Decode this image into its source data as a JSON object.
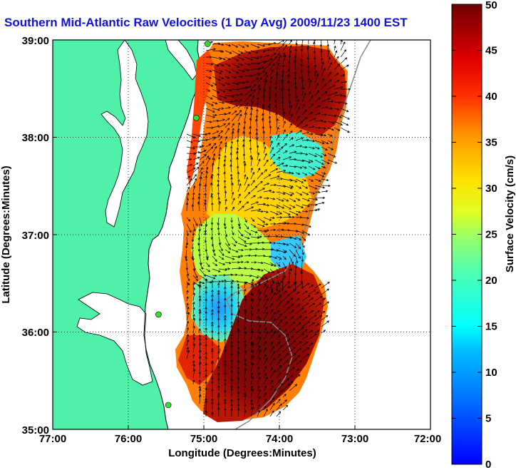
{
  "title": "Southern Mid-Atlantic Raw Velocities (1 Day Avg) 2009/11/23 1400 EST",
  "map": {
    "xlabel": "Longitude (Degrees:Minutes)",
    "ylabel": "Latitude (Degrees:Minutes)",
    "x_ticks": [
      "77:00",
      "76:00",
      "75:00",
      "74:00",
      "73:00",
      "72:00"
    ],
    "y_ticks": [
      "39:00",
      "38:00",
      "37:00",
      "36:00",
      "35:00"
    ],
    "lon_range": [
      -77,
      -72
    ],
    "lat_range": [
      35,
      39
    ],
    "grid": "dotted",
    "colors": {
      "land": "#4ff0a8",
      "ocean": "#ffffff",
      "vectors": "#000000",
      "stations": "#33dd33",
      "bathymetry": "#888888",
      "title": "#1010e0"
    }
  },
  "colorbar": {
    "label": "Surface Velocity (cm/s)",
    "ticks": [
      "50",
      "45",
      "40",
      "35",
      "30",
      "25",
      "20",
      "15",
      "10",
      "5",
      "0"
    ],
    "range": [
      0,
      50
    ],
    "colormap": "jet"
  },
  "stations": [
    {
      "lon": -74.95,
      "lat": 38.96
    },
    {
      "lon": -75.1,
      "lat": 38.2
    },
    {
      "lon": -75.6,
      "lat": 36.18
    },
    {
      "lon": -75.47,
      "lat": 35.25
    }
  ]
}
